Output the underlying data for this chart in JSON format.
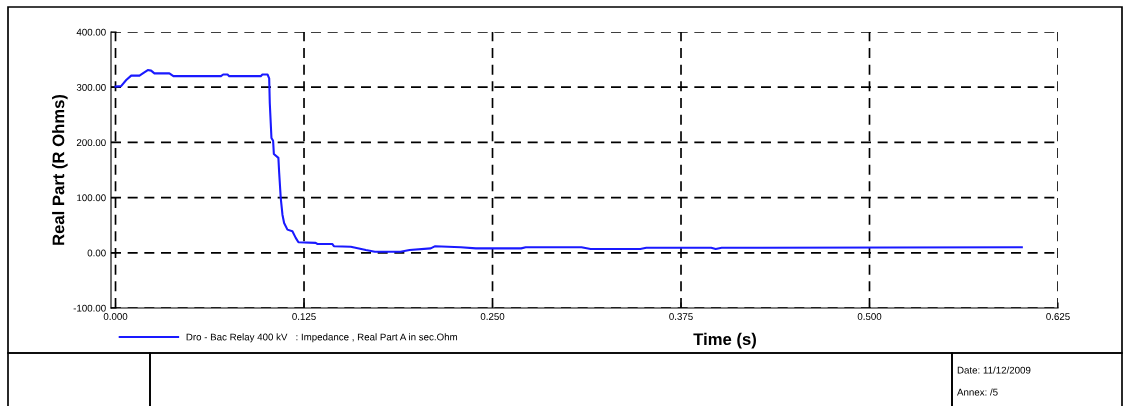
{
  "chart_data": {
    "type": "line",
    "xlabel": "Time (s)",
    "ylabel": "Real Part (R Ohms)",
    "xlim": [
      -0.003,
      0.625
    ],
    "ylim": [
      -100,
      400
    ],
    "xticks": [
      {
        "value": 0,
        "label": "0.000"
      },
      {
        "value": 0.125,
        "label": "0.125"
      },
      {
        "value": 0.25,
        "label": "0.250"
      },
      {
        "value": 0.375,
        "label": "0.375"
      },
      {
        "value": 0.5,
        "label": "0.500"
      },
      {
        "value": 0.625,
        "label": "0.625"
      }
    ],
    "yticks": [
      {
        "value": -100,
        "label": "-100.00"
      },
      {
        "value": 0,
        "label": "0.00"
      },
      {
        "value": 100,
        "label": "100.00"
      },
      {
        "value": 200,
        "label": "200.00"
      },
      {
        "value": 300,
        "label": "300.00"
      },
      {
        "value": 400,
        "label": "400.00"
      }
    ],
    "grid": true,
    "legend": "bottom left",
    "line_style": "solid",
    "marker": "none",
    "series": [
      {
        "name": "Dro - Bac Relay 400 kV   : Impedance , Real Part A in sec.Ohm",
        "color": "#1a1aff",
        "x": [
          0,
          0.0037,
          0.0071,
          0.0104,
          0.0159,
          0.0181,
          0.0214,
          0.0236,
          0.0258,
          0.0357,
          0.0384,
          0.0699,
          0.0714,
          0.0743,
          0.0754,
          0.0963,
          0.0974,
          0.1008,
          0.1019,
          0.1023,
          0.1034,
          0.1045,
          0.105,
          0.108,
          0.1085,
          0.1096,
          0.1107,
          0.1118,
          0.114,
          0.1173,
          0.1195,
          0.1213,
          0.1327,
          0.1338,
          0.1437,
          0.1448,
          0.156,
          0.166,
          0.172,
          0.189,
          0.195,
          0.209,
          0.212,
          0.229,
          0.239,
          0.269,
          0.272,
          0.309,
          0.315,
          0.348,
          0.352,
          0.395,
          0.398,
          0.402,
          0.601
        ],
        "values": [
          301,
          302,
          313,
          321,
          321,
          325,
          331,
          330,
          325,
          325,
          320,
          320,
          323,
          323,
          320,
          320,
          323,
          323,
          316,
          271,
          208,
          203,
          179,
          172,
          146,
          98,
          69,
          54,
          42,
          39,
          27,
          19,
          18,
          16,
          16,
          12,
          11,
          5,
          2,
          2,
          5,
          8,
          12,
          10,
          8,
          8,
          10,
          10,
          7,
          7,
          9,
          9,
          7,
          9,
          10
        ]
      }
    ],
    "annotations": [
      "Date: 11/12/2009",
      "Annex: /5"
    ]
  }
}
